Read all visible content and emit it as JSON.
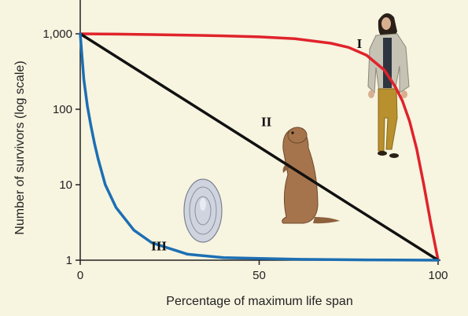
{
  "chart_data": {
    "type": "line",
    "title": "",
    "xlabel": "Percentage of maximum life span",
    "ylabel": "Number of survivors (log scale)",
    "xlim": [
      0,
      100
    ],
    "ylim": [
      1,
      1000
    ],
    "yscale": "log",
    "grid": false,
    "x_ticks": [
      0,
      50,
      100
    ],
    "x_tick_labels": [
      "0",
      "50",
      "100"
    ],
    "y_ticks": [
      1,
      10,
      100,
      1000
    ],
    "y_tick_labels": [
      "1",
      "10",
      "100",
      "1,000"
    ],
    "series": [
      {
        "name": "I",
        "color": "#e0232b",
        "x": [
          0,
          10,
          20,
          30,
          40,
          50,
          60,
          70,
          75,
          80,
          85,
          88,
          90,
          92,
          94,
          96,
          98,
          100
        ],
        "y": [
          1000,
          990,
          975,
          960,
          940,
          910,
          860,
          750,
          660,
          520,
          330,
          200,
          130,
          70,
          30,
          10,
          3,
          1
        ]
      },
      {
        "name": "II",
        "color": "#111111",
        "x": [
          0,
          25,
          50,
          75,
          100
        ],
        "y": [
          1000,
          178,
          31.6,
          5.6,
          1
        ]
      },
      {
        "name": "III",
        "color": "#1c6fb3",
        "x": [
          0,
          0.5,
          1,
          2,
          3,
          4,
          5,
          7,
          10,
          15,
          20,
          30,
          40,
          60,
          80,
          100
        ],
        "y": [
          1000,
          500,
          250,
          110,
          60,
          35,
          22,
          10,
          5,
          2.5,
          1.7,
          1.2,
          1.08,
          1.03,
          1.01,
          1
        ]
      }
    ],
    "series_label_positions": [
      {
        "name": "I",
        "x": 78,
        "y": 650
      },
      {
        "name": "II",
        "x": 52,
        "y": 60
      },
      {
        "name": "III",
        "x": 22,
        "y": 1.35
      }
    ]
  },
  "illustrations": [
    {
      "name": "human-figure",
      "icon": "human-icon"
    },
    {
      "name": "squirrel-figure",
      "icon": "squirrel-icon"
    },
    {
      "name": "oyster-figure",
      "icon": "oyster-icon"
    }
  ],
  "colors": {
    "background": "#f7f4e0",
    "axis": "#222222"
  }
}
